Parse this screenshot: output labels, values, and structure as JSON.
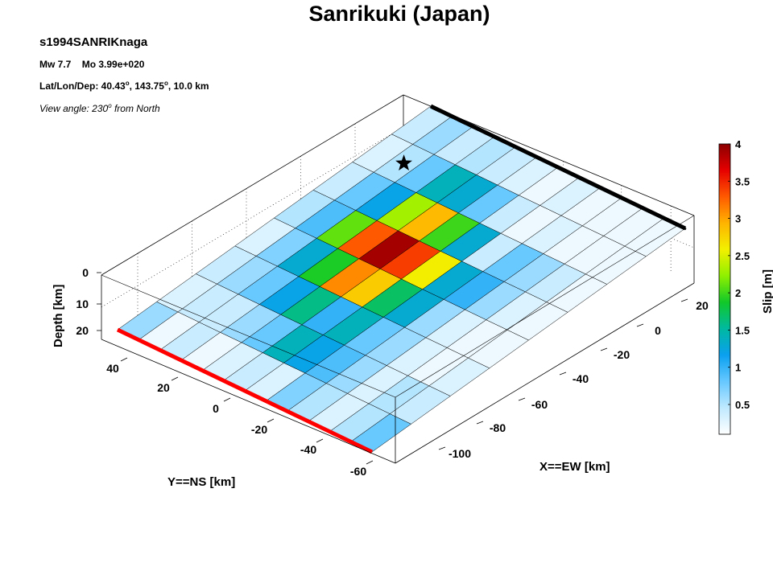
{
  "figure": {
    "title": "Sanrikuki (Japan)",
    "event_id": "s1994SANRIKnaga",
    "mw_label": "Mw 7.7",
    "mo_label": "Mo 3.99e+020",
    "location_prefix": "Lat/Lon/Dep: 40.43",
    "location_mid": ", 143.75",
    "location_suffix": ", 10.0 km",
    "degree_mark": "o",
    "view_prefix": "View angle: 230",
    "view_suffix": " from North"
  },
  "chart_data": {
    "type": "heatmap",
    "title": "Sanrikuki (Japan)",
    "xlabel": "X==EW [km]",
    "ylabel": "Y==NS [km]",
    "zlabel": "Depth [km]",
    "colorbar_label": "Slip [m]",
    "x_ticks": [
      "20",
      "0",
      "-20",
      "-40",
      "-60",
      "-80",
      "-100"
    ],
    "y_ticks": [
      "40",
      "20",
      "0",
      "-20",
      "-40",
      "-60"
    ],
    "z_ticks": [
      "0",
      "10",
      "20"
    ],
    "colorbar_ticks": [
      "4",
      "3.5",
      "3",
      "2.5",
      "2",
      "1.5",
      "1",
      "0.5"
    ],
    "colorbar_range": [
      0.1,
      4.0
    ],
    "colormap": [
      "#ffffff",
      "#bfe9ff",
      "#66c8ff",
      "#0aa0f0",
      "#00b9a0",
      "#11c829",
      "#8ef000",
      "#f2f000",
      "#ffb400",
      "#ff5a00",
      "#e60000",
      "#8c0000"
    ],
    "hypocenter_slip_m": 1.4,
    "trench_color": "#000000",
    "edge_color": "#ff0000",
    "slip_m": [
      [
        0.6,
        0.2,
        0.4,
        0.2,
        0.3,
        0.4,
        0.3,
        0.7,
        0.5,
        0.3,
        0.5,
        0.8
      ],
      [
        0.3,
        0.4,
        0.4,
        0.6,
        0.8,
        1.4,
        1.2,
        0.9,
        0.6,
        0.3,
        0.5,
        0.4
      ],
      [
        0.4,
        0.6,
        0.8,
        1.2,
        1.6,
        1.0,
        1.4,
        0.8,
        0.6,
        0.3,
        0.2,
        0.3
      ],
      [
        0.3,
        0.7,
        1.3,
        1.9,
        3.1,
        2.8,
        1.7,
        1.3,
        0.6,
        0.3,
        0.2,
        0.2
      ],
      [
        0.5,
        0.9,
        2.1,
        3.3,
        3.9,
        3.4,
        2.6,
        1.3,
        1.0,
        0.6,
        0.3,
        0.2
      ],
      [
        0.4,
        0.8,
        1.2,
        2.3,
        2.9,
        2.0,
        1.3,
        0.4,
        0.8,
        0.6,
        0.4,
        0.2
      ],
      [
        0.3,
        0.5,
        0.8,
        1.4,
        1.3,
        0.8,
        0.4,
        0.2,
        0.3,
        0.2,
        0.2,
        0.2
      ],
      [
        0.4,
        0.6,
        0.4,
        0.5,
        0.4,
        0.3,
        0.2,
        0.3,
        0.2,
        0.2,
        0.2,
        0.2
      ]
    ]
  }
}
